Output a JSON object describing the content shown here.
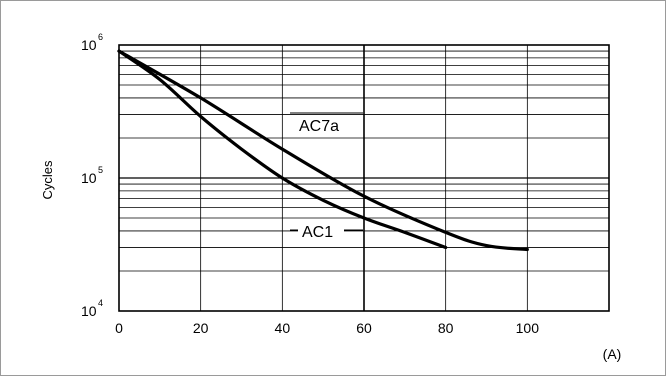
{
  "chart_data": {
    "type": "line",
    "title": "",
    "ylabel": "Cycles",
    "xlabel": "(A)",
    "xlim": [
      0,
      120
    ],
    "ylim": [
      10000,
      1000000
    ],
    "y_scale": "log",
    "grid": true,
    "x_ticks": [
      "0",
      "20",
      "40",
      "60",
      "80",
      "100"
    ],
    "y_ticks": [
      {
        "base": "10",
        "exp": "4"
      },
      {
        "base": "10",
        "exp": "5"
      },
      {
        "base": "10",
        "exp": "6"
      }
    ],
    "series": [
      {
        "name": "AC7a",
        "x": [
          0,
          20,
          40,
          60,
          80,
          90,
          100
        ],
        "y": [
          900000,
          400000,
          165000,
          73000,
          39000,
          31000,
          29000
        ]
      },
      {
        "name": "AC1",
        "x": [
          0,
          10,
          20,
          30,
          40,
          50,
          60,
          70,
          80
        ],
        "y": [
          900000,
          550000,
          290000,
          165000,
          100000,
          68000,
          50000,
          39000,
          30000
        ]
      }
    ]
  }
}
